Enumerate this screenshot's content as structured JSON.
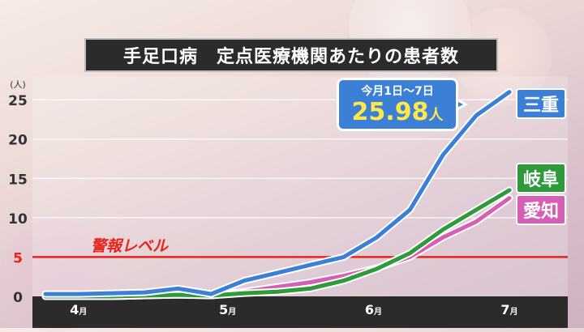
{
  "title": "手足口病　定点医療機関あたりの患者数",
  "callout": {
    "caption": "今月1日～7日",
    "value": "25.98",
    "unit": "人"
  },
  "warning": {
    "label": "警報レベル",
    "value": 5,
    "color": "#e8231c"
  },
  "chart_data": {
    "type": "line",
    "title": "手足口病　定点医療機関あたりの患者数",
    "ylabel": "(人)",
    "ylim": [
      0,
      28
    ],
    "yticks": [
      "0",
      "5",
      "10",
      "15",
      "20",
      "25"
    ],
    "xticks": [
      {
        "label": "4月",
        "pos": 1.0
      },
      {
        "label": "5月",
        "pos": 5.5
      },
      {
        "label": "6月",
        "pos": 9.9
      },
      {
        "label": "7月",
        "pos": 14.0
      }
    ],
    "x": [
      0,
      1,
      2,
      3,
      4,
      5,
      6,
      7,
      8,
      9,
      10,
      11,
      12,
      13,
      14
    ],
    "series": [
      {
        "name": "三重",
        "color": "#3c7fd6",
        "values": [
          0.3,
          0.3,
          0.4,
          0.5,
          1.0,
          0.3,
          2.0,
          3.0,
          4.0,
          5.0,
          7.5,
          11.0,
          18.0,
          23.0,
          25.98
        ]
      },
      {
        "name": "岐阜",
        "color": "#2e9a3a",
        "values": [
          0.0,
          0.0,
          0.0,
          0.1,
          0.2,
          0.1,
          0.4,
          0.6,
          1.0,
          2.0,
          3.5,
          5.5,
          8.5,
          11.0,
          13.5
        ]
      },
      {
        "name": "愛知",
        "color": "#d65fb5",
        "values": [
          0.0,
          0.0,
          0.0,
          0.1,
          0.2,
          0.1,
          0.6,
          1.2,
          1.8,
          2.6,
          3.6,
          5.0,
          7.5,
          9.5,
          12.5
        ]
      }
    ]
  }
}
